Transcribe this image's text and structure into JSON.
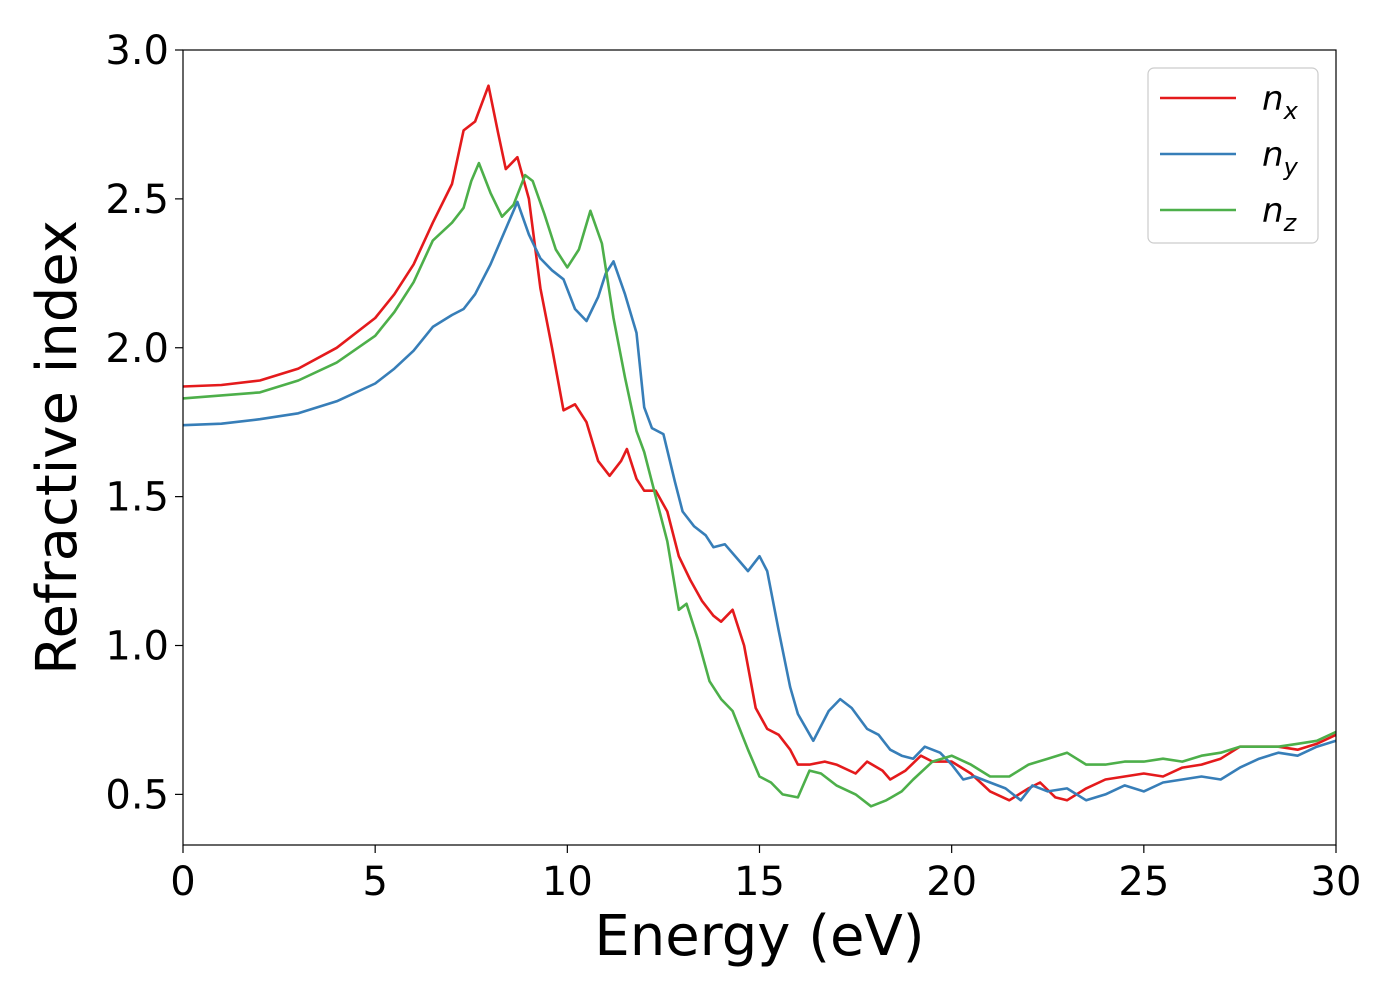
{
  "chart_data": {
    "type": "line",
    "title": "",
    "xlabel": "Energy (eV)",
    "ylabel": "Refractive index",
    "xlim": [
      0,
      30
    ],
    "ylim": [
      0.33,
      3.0
    ],
    "xticks": [
      0,
      5,
      10,
      15,
      20,
      25,
      30
    ],
    "yticks": [
      0.5,
      1.0,
      1.5,
      2.0,
      2.5,
      3.0
    ],
    "xtick_labels": [
      "0",
      "5",
      "10",
      "15",
      "20",
      "25",
      "30"
    ],
    "ytick_labels": [
      "0.5",
      "1.0",
      "1.5",
      "2.0",
      "2.5",
      "3.0"
    ],
    "grid": false,
    "legend_position": "top-right",
    "series": [
      {
        "name": "n",
        "subscript": "x",
        "color": "#e41a1c",
        "points": [
          [
            0,
            1.87
          ],
          [
            1,
            1.875
          ],
          [
            2,
            1.89
          ],
          [
            3,
            1.93
          ],
          [
            4,
            2.0
          ],
          [
            5,
            2.1
          ],
          [
            5.5,
            2.18
          ],
          [
            6,
            2.28
          ],
          [
            6.5,
            2.42
          ],
          [
            7,
            2.55
          ],
          [
            7.3,
            2.73
          ],
          [
            7.6,
            2.76
          ],
          [
            7.95,
            2.88
          ],
          [
            8.2,
            2.72
          ],
          [
            8.4,
            2.6
          ],
          [
            8.7,
            2.64
          ],
          [
            9.0,
            2.5
          ],
          [
            9.3,
            2.2
          ],
          [
            9.6,
            2.0
          ],
          [
            9.9,
            1.79
          ],
          [
            10.2,
            1.81
          ],
          [
            10.5,
            1.75
          ],
          [
            10.8,
            1.62
          ],
          [
            11.1,
            1.57
          ],
          [
            11.4,
            1.62
          ],
          [
            11.55,
            1.66
          ],
          [
            11.8,
            1.56
          ],
          [
            12.0,
            1.52
          ],
          [
            12.3,
            1.52
          ],
          [
            12.6,
            1.45
          ],
          [
            12.9,
            1.3
          ],
          [
            13.2,
            1.22
          ],
          [
            13.5,
            1.15
          ],
          [
            13.8,
            1.1
          ],
          [
            14.0,
            1.08
          ],
          [
            14.3,
            1.12
          ],
          [
            14.6,
            1.0
          ],
          [
            14.9,
            0.79
          ],
          [
            15.2,
            0.72
          ],
          [
            15.5,
            0.7
          ],
          [
            15.8,
            0.65
          ],
          [
            16.0,
            0.6
          ],
          [
            16.3,
            0.6
          ],
          [
            16.7,
            0.61
          ],
          [
            17.0,
            0.6
          ],
          [
            17.5,
            0.57
          ],
          [
            17.8,
            0.61
          ],
          [
            18.2,
            0.58
          ],
          [
            18.4,
            0.55
          ],
          [
            18.8,
            0.58
          ],
          [
            19.2,
            0.63
          ],
          [
            19.5,
            0.61
          ],
          [
            20.0,
            0.61
          ],
          [
            20.5,
            0.57
          ],
          [
            21.0,
            0.51
          ],
          [
            21.5,
            0.48
          ],
          [
            22.0,
            0.52
          ],
          [
            22.3,
            0.54
          ],
          [
            22.7,
            0.49
          ],
          [
            23.0,
            0.48
          ],
          [
            23.5,
            0.52
          ],
          [
            24.0,
            0.55
          ],
          [
            24.5,
            0.56
          ],
          [
            25.0,
            0.57
          ],
          [
            25.5,
            0.56
          ],
          [
            26.0,
            0.59
          ],
          [
            26.5,
            0.6
          ],
          [
            27.0,
            0.62
          ],
          [
            27.5,
            0.66
          ],
          [
            28.0,
            0.66
          ],
          [
            28.5,
            0.66
          ],
          [
            29.0,
            0.65
          ],
          [
            29.5,
            0.67
          ],
          [
            30,
            0.7
          ]
        ]
      },
      {
        "name": "n",
        "subscript": "y",
        "color": "#377eb8",
        "points": [
          [
            0,
            1.74
          ],
          [
            1,
            1.745
          ],
          [
            2,
            1.76
          ],
          [
            3,
            1.78
          ],
          [
            4,
            1.82
          ],
          [
            5,
            1.88
          ],
          [
            5.5,
            1.93
          ],
          [
            6,
            1.99
          ],
          [
            6.5,
            2.07
          ],
          [
            7,
            2.11
          ],
          [
            7.3,
            2.13
          ],
          [
            7.6,
            2.18
          ],
          [
            8.0,
            2.28
          ],
          [
            8.4,
            2.4
          ],
          [
            8.7,
            2.49
          ],
          [
            9.0,
            2.38
          ],
          [
            9.3,
            2.3
          ],
          [
            9.6,
            2.26
          ],
          [
            9.9,
            2.23
          ],
          [
            10.2,
            2.13
          ],
          [
            10.5,
            2.09
          ],
          [
            10.8,
            2.17
          ],
          [
            11.0,
            2.25
          ],
          [
            11.2,
            2.29
          ],
          [
            11.5,
            2.18
          ],
          [
            11.8,
            2.05
          ],
          [
            12.0,
            1.8
          ],
          [
            12.2,
            1.73
          ],
          [
            12.5,
            1.71
          ],
          [
            12.8,
            1.55
          ],
          [
            13.0,
            1.45
          ],
          [
            13.3,
            1.4
          ],
          [
            13.6,
            1.37
          ],
          [
            13.8,
            1.33
          ],
          [
            14.1,
            1.34
          ],
          [
            14.5,
            1.28
          ],
          [
            14.7,
            1.25
          ],
          [
            15.0,
            1.3
          ],
          [
            15.2,
            1.25
          ],
          [
            15.5,
            1.05
          ],
          [
            15.8,
            0.86
          ],
          [
            16.0,
            0.77
          ],
          [
            16.4,
            0.68
          ],
          [
            16.8,
            0.78
          ],
          [
            17.1,
            0.82
          ],
          [
            17.4,
            0.79
          ],
          [
            17.8,
            0.72
          ],
          [
            18.1,
            0.7
          ],
          [
            18.4,
            0.65
          ],
          [
            18.7,
            0.63
          ],
          [
            19.0,
            0.62
          ],
          [
            19.3,
            0.66
          ],
          [
            19.7,
            0.64
          ],
          [
            20.0,
            0.6
          ],
          [
            20.3,
            0.55
          ],
          [
            20.6,
            0.56
          ],
          [
            21.0,
            0.54
          ],
          [
            21.4,
            0.52
          ],
          [
            21.8,
            0.48
          ],
          [
            22.1,
            0.53
          ],
          [
            22.5,
            0.51
          ],
          [
            23.0,
            0.52
          ],
          [
            23.5,
            0.48
          ],
          [
            24.0,
            0.5
          ],
          [
            24.5,
            0.53
          ],
          [
            25.0,
            0.51
          ],
          [
            25.5,
            0.54
          ],
          [
            26.0,
            0.55
          ],
          [
            26.5,
            0.56
          ],
          [
            27.0,
            0.55
          ],
          [
            27.5,
            0.59
          ],
          [
            28.0,
            0.62
          ],
          [
            28.5,
            0.64
          ],
          [
            29.0,
            0.63
          ],
          [
            29.5,
            0.66
          ],
          [
            30,
            0.68
          ]
        ]
      },
      {
        "name": "n",
        "subscript": "z",
        "color": "#4daf4a",
        "points": [
          [
            0,
            1.83
          ],
          [
            1,
            1.84
          ],
          [
            2,
            1.85
          ],
          [
            3,
            1.89
          ],
          [
            4,
            1.95
          ],
          [
            5,
            2.04
          ],
          [
            5.5,
            2.12
          ],
          [
            6,
            2.22
          ],
          [
            6.5,
            2.36
          ],
          [
            7,
            2.42
          ],
          [
            7.3,
            2.47
          ],
          [
            7.5,
            2.56
          ],
          [
            7.7,
            2.62
          ],
          [
            8.0,
            2.52
          ],
          [
            8.3,
            2.44
          ],
          [
            8.6,
            2.48
          ],
          [
            8.9,
            2.58
          ],
          [
            9.1,
            2.56
          ],
          [
            9.4,
            2.45
          ],
          [
            9.7,
            2.33
          ],
          [
            10.0,
            2.27
          ],
          [
            10.3,
            2.33
          ],
          [
            10.6,
            2.46
          ],
          [
            10.9,
            2.35
          ],
          [
            11.2,
            2.1
          ],
          [
            11.5,
            1.9
          ],
          [
            11.8,
            1.72
          ],
          [
            12.0,
            1.65
          ],
          [
            12.3,
            1.5
          ],
          [
            12.6,
            1.35
          ],
          [
            12.9,
            1.12
          ],
          [
            13.1,
            1.14
          ],
          [
            13.4,
            1.02
          ],
          [
            13.7,
            0.88
          ],
          [
            14.0,
            0.82
          ],
          [
            14.3,
            0.78
          ],
          [
            14.7,
            0.65
          ],
          [
            15.0,
            0.56
          ],
          [
            15.3,
            0.54
          ],
          [
            15.6,
            0.5
          ],
          [
            16.0,
            0.49
          ],
          [
            16.3,
            0.58
          ],
          [
            16.6,
            0.57
          ],
          [
            17.0,
            0.53
          ],
          [
            17.5,
            0.5
          ],
          [
            17.9,
            0.46
          ],
          [
            18.3,
            0.48
          ],
          [
            18.7,
            0.51
          ],
          [
            19.0,
            0.55
          ],
          [
            19.5,
            0.61
          ],
          [
            20.0,
            0.63
          ],
          [
            20.5,
            0.6
          ],
          [
            21.0,
            0.56
          ],
          [
            21.5,
            0.56
          ],
          [
            22.0,
            0.6
          ],
          [
            22.5,
            0.62
          ],
          [
            23.0,
            0.64
          ],
          [
            23.5,
            0.6
          ],
          [
            24.0,
            0.6
          ],
          [
            24.5,
            0.61
          ],
          [
            25.0,
            0.61
          ],
          [
            25.5,
            0.62
          ],
          [
            26.0,
            0.61
          ],
          [
            26.5,
            0.63
          ],
          [
            27.0,
            0.64
          ],
          [
            27.5,
            0.66
          ],
          [
            28.0,
            0.66
          ],
          [
            28.5,
            0.66
          ],
          [
            29.0,
            0.67
          ],
          [
            29.5,
            0.68
          ],
          [
            30,
            0.71
          ]
        ]
      }
    ]
  }
}
